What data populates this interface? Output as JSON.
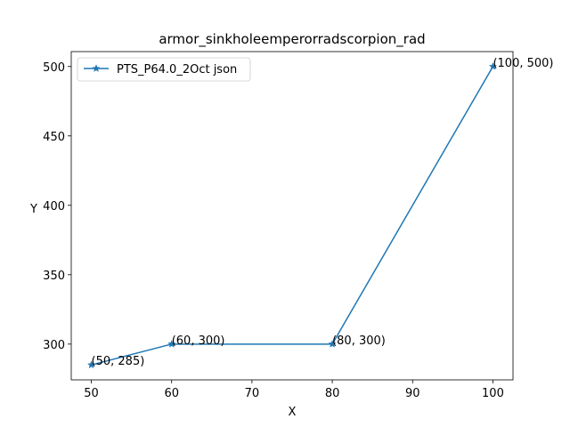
{
  "chart_data": {
    "type": "line",
    "title": "armor_sinkholeemperorradscorpion_rad",
    "xlabel": "X",
    "ylabel": "Y",
    "xlim": [
      47.5,
      102.5
    ],
    "ylim": [
      274.25,
      510.75
    ],
    "xticks": [
      50,
      60,
      70,
      80,
      90,
      100
    ],
    "yticks": [
      300,
      350,
      400,
      450,
      500
    ],
    "grid": false,
    "legend_position": "top-left",
    "series": [
      {
        "name": "PTS_P64.0_2Oct json",
        "color": "#1f77b4",
        "marker": "star",
        "x": [
          50,
          60,
          80,
          100
        ],
        "y": [
          285,
          300,
          300,
          500
        ]
      }
    ],
    "annotations": [
      "(50, 285)",
      "(60, 300)",
      "(80, 300)",
      "(100, 500)"
    ]
  }
}
